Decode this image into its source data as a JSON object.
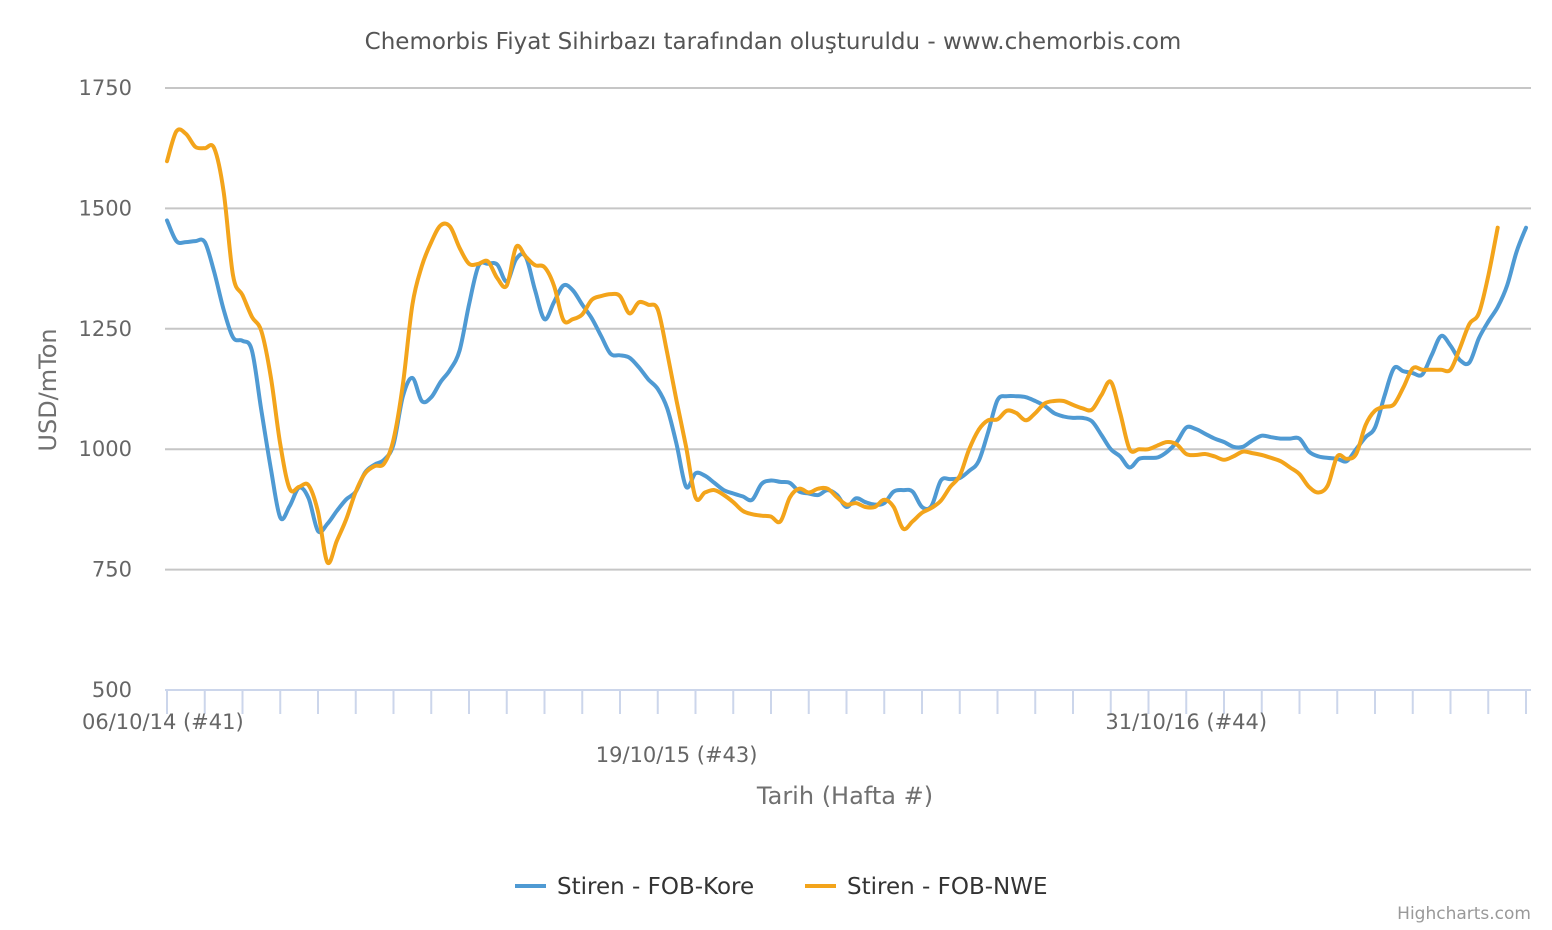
{
  "chart_data": {
    "type": "line",
    "title": "Chemorbis Fiyat Sihirbazı tarafından oluşturuldu - www.chemorbis.com",
    "xlabel": "Tarih (Hafta #)",
    "ylabel": "USD/mTon",
    "ylim": [
      500,
      1750
    ],
    "yticks": [
      500,
      750,
      1000,
      1250,
      1500,
      1750
    ],
    "x_start_label": "06/10/14 (#41)",
    "x_labels": [
      {
        "index": 0,
        "label": "06/10/14 (#41)",
        "row": 1
      },
      {
        "index": 54,
        "label": "19/10/15 (#43)",
        "row": 2
      },
      {
        "index": 108,
        "label": "31/10/16 (#44)",
        "row": 1
      }
    ],
    "grid": true,
    "legend_position": "bottom-center",
    "credits": "Highcharts.com",
    "series": [
      {
        "name": "Stiren - FOB-Kore",
        "color": "#4f9ad3",
        "values": [
          1475,
          1432,
          1430,
          1432,
          1430,
          1368,
          1290,
          1232,
          1225,
          1205,
          1080,
          960,
          858,
          882,
          920,
          898,
          830,
          845,
          872,
          896,
          912,
          952,
          968,
          978,
          1010,
          1110,
          1148,
          1100,
          1108,
          1140,
          1165,
          1205,
          1300,
          1380,
          1385,
          1383,
          1348,
          1395,
          1400,
          1330,
          1270,
          1305,
          1340,
          1330,
          1300,
          1272,
          1235,
          1198,
          1195,
          1190,
          1170,
          1145,
          1125,
          1085,
          1010,
          922,
          950,
          945,
          930,
          915,
          908,
          902,
          895,
          928,
          935,
          932,
          930,
          912,
          908,
          905,
          915,
          905,
          880,
          898,
          890,
          885,
          888,
          912,
          915,
          912,
          880,
          882,
          935,
          938,
          940,
          955,
          975,
          1035,
          1102,
          1110,
          1110,
          1108,
          1100,
          1090,
          1075,
          1068,
          1065,
          1065,
          1058,
          1030,
          1000,
          985,
          962,
          980,
          982,
          983,
          995,
          1015,
          1045,
          1042,
          1032,
          1022,
          1015,
          1005,
          1005,
          1018,
          1028,
          1025,
          1022,
          1022,
          1022,
          995,
          985,
          982,
          980,
          975,
          1000,
          1025,
          1045,
          1110,
          1168,
          1162,
          1158,
          1155,
          1195,
          1235,
          1215,
          1185,
          1180,
          1230,
          1265,
          1295,
          1340,
          1410,
          1460
        ]
      },
      {
        "name": "Stiren - FOB-NWE",
        "color": "#f3a41b",
        "values": [
          1598,
          1660,
          1655,
          1628,
          1625,
          1625,
          1535,
          1360,
          1320,
          1275,
          1245,
          1150,
          1010,
          918,
          922,
          925,
          870,
          765,
          810,
          855,
          912,
          950,
          965,
          970,
          1020,
          1135,
          1300,
          1380,
          1430,
          1465,
          1462,
          1418,
          1385,
          1385,
          1390,
          1355,
          1340,
          1420,
          1400,
          1382,
          1378,
          1340,
          1268,
          1270,
          1280,
          1310,
          1318,
          1322,
          1318,
          1282,
          1305,
          1300,
          1290,
          1200,
          1100,
          1005,
          900,
          910,
          915,
          905,
          890,
          872,
          865,
          862,
          860,
          850,
          900,
          918,
          910,
          918,
          918,
          900,
          885,
          888,
          880,
          880,
          895,
          880,
          835,
          850,
          868,
          878,
          893,
          922,
          945,
          1000,
          1040,
          1060,
          1062,
          1080,
          1075,
          1060,
          1075,
          1095,
          1100,
          1100,
          1092,
          1085,
          1082,
          1112,
          1140,
          1075,
          1000,
          1000,
          1000,
          1008,
          1015,
          1010,
          990,
          988,
          990,
          985,
          978,
          985,
          995,
          992,
          988,
          982,
          975,
          962,
          948,
          922,
          910,
          925,
          985,
          980,
          990,
          1050,
          1080,
          1088,
          1093,
          1128,
          1168,
          1165,
          1165,
          1165,
          1165,
          1210,
          1260,
          1282,
          1360,
          1460
        ]
      }
    ]
  }
}
